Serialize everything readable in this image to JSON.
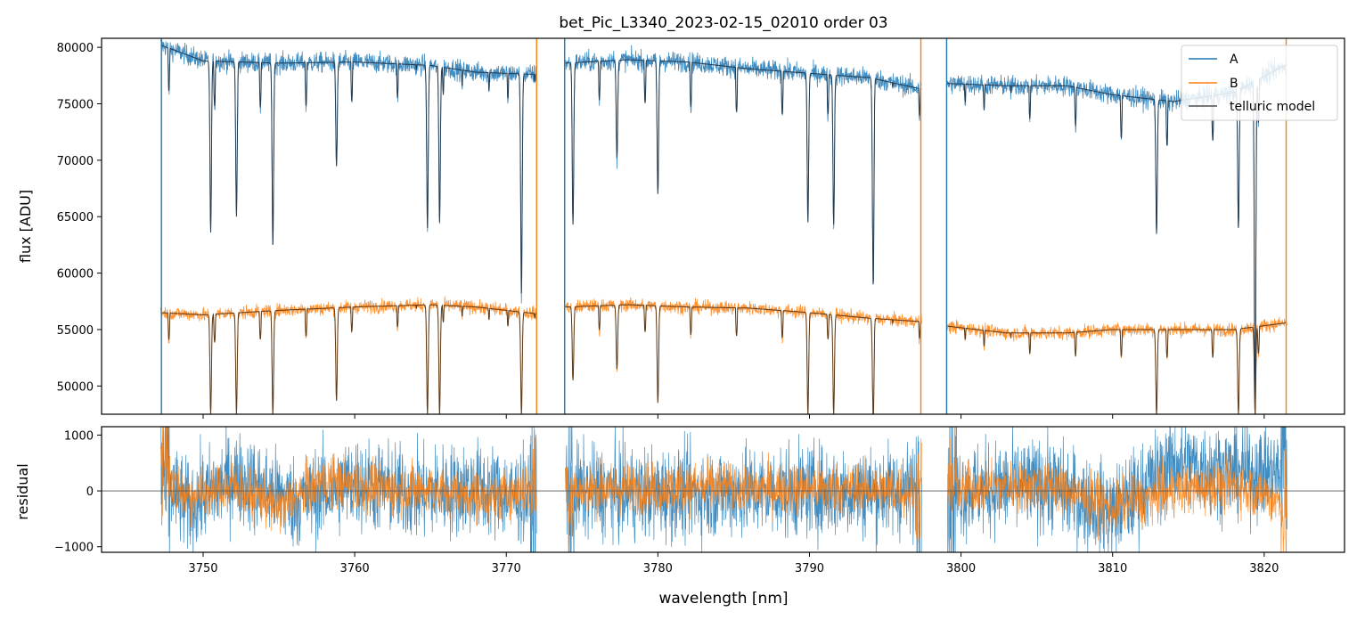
{
  "title": "bet_Pic_L3340_2023-02-15_02010  order 03",
  "chart_data": [
    {
      "panel": "top",
      "type": "line",
      "xlabel": "",
      "ylabel": "flux [ADU]",
      "xlim": [
        3743.3,
        3825.3
      ],
      "ylim": [
        47500,
        80800
      ],
      "yticks": [
        50000,
        55000,
        60000,
        65000,
        70000,
        75000,
        80000
      ],
      "xticks": [
        3750,
        3760,
        3770,
        3780,
        3790,
        3800,
        3810,
        3820
      ],
      "xticklabels_shown": false,
      "legend": {
        "placement": "top-right",
        "entries": [
          {
            "label": "A",
            "color": "#1f77b4"
          },
          {
            "label": "B",
            "color": "#ff7f0e"
          },
          {
            "label": "telluric model",
            "color": "#4d4d4d"
          }
        ]
      },
      "segments": [
        [
          3747.2,
          3772.0
        ],
        [
          3773.9,
          3797.4
        ],
        [
          3799.1,
          3821.5
        ]
      ],
      "series": [
        {
          "name": "A",
          "color": "#1f77b4",
          "continuum_points": [
            [
              3747.2,
              80200
            ],
            [
              3750,
              78800
            ],
            [
              3755,
              78600
            ],
            [
              3760,
              78700
            ],
            [
              3765,
              78400
            ],
            [
              3768,
              77800
            ],
            [
              3772.0,
              77600
            ],
            [
              3773.9,
              78600
            ],
            [
              3778,
              78900
            ],
            [
              3782,
              78700
            ],
            [
              3786,
              78100
            ],
            [
              3790,
              77700
            ],
            [
              3794,
              77300
            ],
            [
              3797.4,
              76300
            ],
            [
              3799.1,
              76800
            ],
            [
              3803,
              76600
            ],
            [
              3807,
              76600
            ],
            [
              3810,
              75800
            ],
            [
              3814,
              75200
            ],
            [
              3818,
              76000
            ],
            [
              3821.5,
              78500
            ]
          ],
          "absorption_lines": [
            [
              3750.5,
              63600
            ],
            [
              3752.2,
              65000
            ],
            [
              3754.6,
              62500
            ],
            [
              3758.8,
              69500
            ],
            [
              3764.8,
              64000
            ],
            [
              3765.6,
              64500
            ],
            [
              3771.0,
              58200
            ],
            [
              3774.4,
              64300
            ],
            [
              3777.3,
              70200
            ],
            [
              3780.0,
              67000
            ],
            [
              3789.9,
              64500
            ],
            [
              3791.6,
              64300
            ],
            [
              3794.2,
              60700
            ],
            [
              3798.8,
              64500
            ],
            [
              3812.9,
              63500
            ],
            [
              3818.3,
              64000
            ],
            [
              3819.4,
              47500
            ]
          ]
        },
        {
          "name": "B",
          "color": "#ff7f0e",
          "continuum_points": [
            [
              3747.2,
              56500
            ],
            [
              3750,
              56300
            ],
            [
              3755,
              56700
            ],
            [
              3760,
              57000
            ],
            [
              3765,
              57200
            ],
            [
              3768,
              57000
            ],
            [
              3772.0,
              56400
            ],
            [
              3773.9,
              57000
            ],
            [
              3778,
              57200
            ],
            [
              3782,
              57000
            ],
            [
              3786,
              56900
            ],
            [
              3790,
              56500
            ],
            [
              3794,
              56000
            ],
            [
              3797.4,
              55700
            ],
            [
              3799.1,
              55300
            ],
            [
              3803,
              54700
            ],
            [
              3807,
              54700
            ],
            [
              3810,
              55000
            ],
            [
              3814,
              55000
            ],
            [
              3818,
              55000
            ],
            [
              3821.5,
              55600
            ]
          ],
          "absorption_lines": [
            [
              3750.5,
              47500
            ],
            [
              3752.2,
              47500
            ],
            [
              3754.6,
              47500
            ],
            [
              3758.8,
              48700
            ],
            [
              3764.8,
              47500
            ],
            [
              3765.6,
              47500
            ],
            [
              3771.0,
              47500
            ],
            [
              3774.4,
              50500
            ],
            [
              3777.3,
              51500
            ],
            [
              3780.0,
              48500
            ],
            [
              3789.9,
              47500
            ],
            [
              3791.6,
              47500
            ],
            [
              3794.2,
              48000
            ],
            [
              3798.8,
              50000
            ],
            [
              3812.9,
              47500
            ],
            [
              3818.3,
              47500
            ],
            [
              3819.4,
              47500
            ]
          ]
        },
        {
          "name": "telluric model",
          "color": "#4d4d4d",
          "note_model": "fit overlays A and B"
        }
      ]
    },
    {
      "panel": "bottom",
      "type": "line",
      "xlabel": "wavelength [nm]",
      "ylabel": "residual",
      "xlim": [
        3743.3,
        3825.3
      ],
      "ylim": [
        -1100,
        1150
      ],
      "yticks": [
        -1000,
        0,
        1000
      ],
      "xticks": [
        3750,
        3760,
        3770,
        3780,
        3790,
        3800,
        3810,
        3820
      ],
      "zero_line": 0,
      "series": [
        {
          "name": "A",
          "color": "#1f77b4",
          "typical_amplitude": 420,
          "trend_points": [
            [
              3747.2,
              200
            ],
            [
              3749,
              -300
            ],
            [
              3752,
              250
            ],
            [
              3756,
              -200
            ],
            [
              3760,
              150
            ],
            [
              3764,
              -50
            ],
            [
              3768,
              50
            ],
            [
              3772,
              -150
            ],
            [
              3774,
              0
            ],
            [
              3780,
              -50
            ],
            [
              3790,
              0
            ],
            [
              3797,
              0
            ],
            [
              3799,
              0
            ],
            [
              3806,
              100
            ],
            [
              3810,
              -400
            ],
            [
              3814,
              500
            ],
            [
              3818,
              350
            ],
            [
              3821.5,
              300
            ]
          ]
        },
        {
          "name": "B",
          "color": "#ff7f0e",
          "typical_amplitude": 230,
          "trend_points": [
            [
              3747.2,
              300
            ],
            [
              3749,
              -100
            ],
            [
              3752,
              100
            ],
            [
              3755,
              -300
            ],
            [
              3758,
              200
            ],
            [
              3762,
              50
            ],
            [
              3766,
              0
            ],
            [
              3769,
              -150
            ],
            [
              3772,
              100
            ],
            [
              3774,
              0
            ],
            [
              3780,
              50
            ],
            [
              3790,
              50
            ],
            [
              3797,
              0
            ],
            [
              3799,
              50
            ],
            [
              3806,
              100
            ],
            [
              3810,
              -300
            ],
            [
              3814,
              0
            ],
            [
              3818,
              100
            ],
            [
              3821.5,
              -200
            ]
          ]
        }
      ]
    }
  ]
}
